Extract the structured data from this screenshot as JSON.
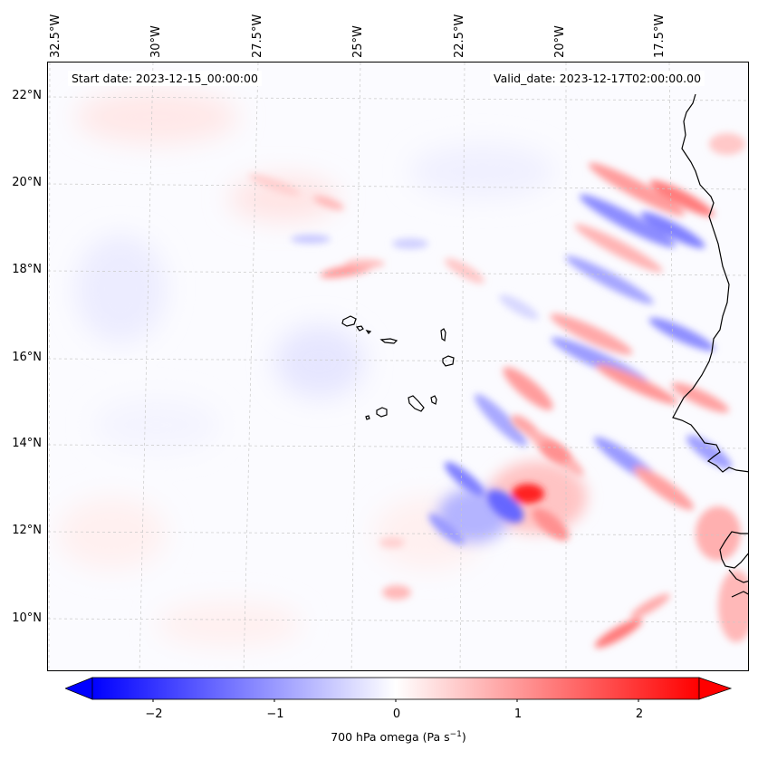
{
  "map": {
    "lon_labels": [
      "32.5°W",
      "30°W",
      "27.5°W",
      "25°W",
      "22.5°W",
      "20°W",
      "17.5°W"
    ],
    "lat_labels": [
      "22°N",
      "20°N",
      "18°N",
      "16°N",
      "14°N",
      "12°N",
      "10°N"
    ],
    "start_date": "Start date: 2023-12-15_00:00:00",
    "valid_date": "Valid_date: 2023-12-17T02:00:00.00",
    "extent": {
      "lon_min": -32.5,
      "lon_max": -16.0,
      "lat_min": 8.9,
      "lat_max": 22.8
    },
    "field": "700 hPa omega",
    "colormap": "bwr",
    "colors": {
      "negative": "#0000ff",
      "zero": "#ffffff",
      "positive": "#ff0000",
      "coastline": "#000000",
      "grid": "#c8c8c8"
    }
  },
  "colorbar": {
    "ticks": [
      "−2",
      "−1",
      "0",
      "1",
      "2"
    ],
    "tick_values": [
      -2,
      -1,
      0,
      1,
      2
    ],
    "range": [
      -2.5,
      2.5
    ],
    "extend": "both",
    "title_text": "700 hPa omega (Pa s",
    "title_sup": "−1",
    "title_close": ")"
  }
}
